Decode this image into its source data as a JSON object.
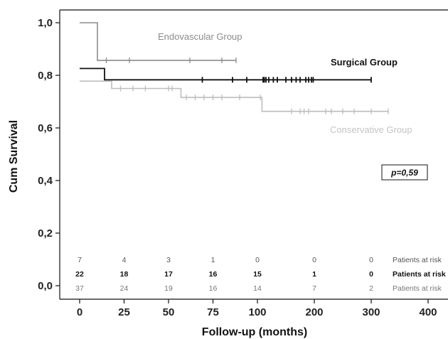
{
  "chart_data": {
    "type": "line",
    "subtype": "kaplan-meier",
    "xlabel": "Follow-up (months)",
    "ylabel": "Cum Survival",
    "x_ticks": [
      {
        "value": 0,
        "label": "0"
      },
      {
        "value": 25,
        "label": "25"
      },
      {
        "value": 50,
        "label": "50"
      },
      {
        "value": 75,
        "label": "75"
      },
      {
        "value": 100,
        "label": "100"
      },
      {
        "value": 200,
        "label": "200"
      },
      {
        "value": 300,
        "label": "300"
      },
      {
        "value": 400,
        "label": "400"
      }
    ],
    "y_ticks": [
      {
        "value": 0.0,
        "label": "0,0"
      },
      {
        "value": 0.2,
        "label": "0,2"
      },
      {
        "value": 0.4,
        "label": "0,4"
      },
      {
        "value": 0.6,
        "label": "0,6"
      },
      {
        "value": 0.8,
        "label": "0,8"
      },
      {
        "value": 1.0,
        "label": "1,0"
      }
    ],
    "x_scale": "piecewise-linear (0–100 then 100–400 compressed)",
    "ylim": [
      -0.05,
      1.05
    ],
    "grid": false,
    "annotation": "p=0,59",
    "series": [
      {
        "name": "Endovascular Group",
        "color": "#8c8c8c",
        "steps": [
          [
            0,
            1.0
          ],
          [
            10,
            0.857
          ],
          [
            88,
            0.857
          ]
        ],
        "censored": [
          [
            15,
            0.857
          ],
          [
            28,
            0.857
          ],
          [
            62,
            0.857
          ],
          [
            80,
            0.857
          ],
          [
            88,
            0.857
          ]
        ]
      },
      {
        "name": "Surgical Group",
        "color": "#111111",
        "steps": [
          [
            0,
            0.826
          ],
          [
            14,
            0.783
          ],
          [
            300,
            0.783
          ]
        ],
        "censored": [
          [
            69,
            0.783
          ],
          [
            86,
            0.783
          ],
          [
            94,
            0.783
          ],
          [
            110,
            0.783
          ],
          [
            112,
            0.783
          ],
          [
            115,
            0.783
          ],
          [
            120,
            0.783
          ],
          [
            128,
            0.783
          ],
          [
            135,
            0.783
          ],
          [
            150,
            0.783
          ],
          [
            160,
            0.783
          ],
          [
            168,
            0.783
          ],
          [
            175,
            0.783
          ],
          [
            185,
            0.783
          ],
          [
            190,
            0.783
          ],
          [
            195,
            0.783
          ],
          [
            198,
            0.783
          ],
          [
            300,
            0.783
          ]
        ]
      },
      {
        "name": "Conservative Group",
        "color": "#bdbdbd",
        "steps": [
          [
            0,
            0.778
          ],
          [
            18,
            0.75
          ],
          [
            57,
            0.716
          ],
          [
            108,
            0.663
          ],
          [
            330,
            0.663
          ]
        ],
        "censored": [
          [
            23,
            0.75
          ],
          [
            30,
            0.75
          ],
          [
            37,
            0.75
          ],
          [
            50,
            0.75
          ],
          [
            52,
            0.75
          ],
          [
            60,
            0.716
          ],
          [
            65,
            0.716
          ],
          [
            70,
            0.716
          ],
          [
            75,
            0.716
          ],
          [
            80,
            0.716
          ],
          [
            90,
            0.716
          ],
          [
            105,
            0.716
          ],
          [
            160,
            0.663
          ],
          [
            175,
            0.663
          ],
          [
            182,
            0.663
          ],
          [
            190,
            0.663
          ],
          [
            220,
            0.663
          ],
          [
            230,
            0.663
          ],
          [
            250,
            0.663
          ],
          [
            270,
            0.663
          ],
          [
            300,
            0.663
          ],
          [
            330,
            0.663
          ]
        ]
      }
    ],
    "at_risk": {
      "times": [
        0,
        25,
        50,
        75,
        100,
        200,
        300
      ],
      "label": "Patients at risk",
      "rows": [
        {
          "name": "Endovascular Group",
          "color": "#555555",
          "bold": false,
          "values": [
            "7",
            "4",
            "3",
            "1",
            "0",
            "0",
            "0"
          ]
        },
        {
          "name": "Surgical Group",
          "color": "#111111",
          "bold": true,
          "values": [
            "22",
            "18",
            "17",
            "16",
            "15",
            "1",
            "0"
          ]
        },
        {
          "name": "Conservative Group",
          "color": "#777777",
          "bold": false,
          "values": [
            "37",
            "24",
            "19",
            "16",
            "14",
            "7",
            "2"
          ]
        }
      ]
    }
  }
}
